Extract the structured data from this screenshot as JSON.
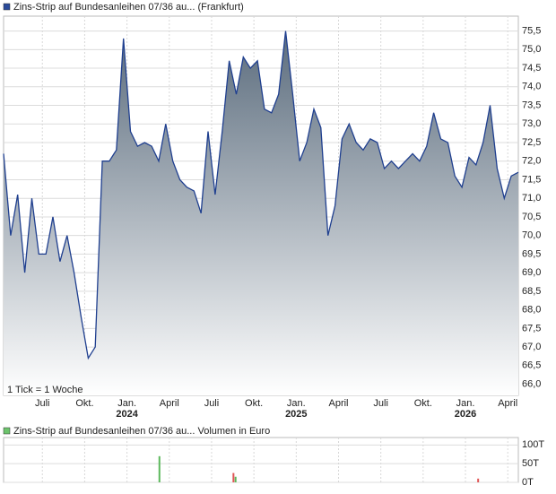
{
  "chart_data": [
    {
      "type": "area",
      "title": "Zins-Strip auf Bundesanleihen 07/36 au... (Frankfurt)",
      "annotation": "1 Tick = 1 Woche",
      "color": "#1f3f8f",
      "fill_top": "#5b6c7d",
      "grid": true,
      "xlim": [
        0,
        73
      ],
      "xticks": [
        {
          "value": 5.5,
          "label": "Juli"
        },
        {
          "value": 11.5,
          "label": "Okt."
        },
        {
          "value": 17.5,
          "label": "Jan.",
          "year": "2024"
        },
        {
          "value": 23.5,
          "label": "April"
        },
        {
          "value": 29.5,
          "label": "Juli"
        },
        {
          "value": 35.5,
          "label": "Okt."
        },
        {
          "value": 41.5,
          "label": "Jan.",
          "year": "2025"
        },
        {
          "value": 47.5,
          "label": "April"
        },
        {
          "value": 53.5,
          "label": "Juli"
        },
        {
          "value": 59.5,
          "label": "Okt."
        },
        {
          "value": 65.5,
          "label": "Jan.",
          "year": "2026"
        },
        {
          "value": 71.5,
          "label": "April"
        }
      ],
      "ylim": [
        65.7,
        75.9
      ],
      "yticks": [
        {
          "value": 66.0,
          "label": "66,0"
        },
        {
          "value": 66.5,
          "label": "66,5"
        },
        {
          "value": 67.0,
          "label": "67,0"
        },
        {
          "value": 67.5,
          "label": "67,5"
        },
        {
          "value": 68.0,
          "label": "68,0"
        },
        {
          "value": 68.5,
          "label": "68,5"
        },
        {
          "value": 69.0,
          "label": "69,0"
        },
        {
          "value": 69.5,
          "label": "69,5"
        },
        {
          "value": 70.0,
          "label": "70,0"
        },
        {
          "value": 70.5,
          "label": "70,5"
        },
        {
          "value": 71.0,
          "label": "71,0"
        },
        {
          "value": 71.5,
          "label": "71,5"
        },
        {
          "value": 72.0,
          "label": "72,0"
        },
        {
          "value": 72.5,
          "label": "72,5"
        },
        {
          "value": 73.0,
          "label": "73,0"
        },
        {
          "value": 73.5,
          "label": "73,5"
        },
        {
          "value": 74.0,
          "label": "74,0"
        },
        {
          "value": 74.5,
          "label": "74,5"
        },
        {
          "value": 75.0,
          "label": "75,0"
        },
        {
          "value": 75.5,
          "label": "75,5"
        }
      ],
      "values": [
        72.2,
        70.0,
        71.1,
        69.0,
        71.0,
        69.5,
        69.5,
        70.5,
        69.3,
        70.0,
        69.0,
        67.8,
        66.7,
        67.0,
        72.0,
        72.0,
        72.3,
        75.3,
        72.8,
        72.4,
        72.5,
        72.4,
        72.0,
        73.0,
        72.0,
        71.5,
        71.3,
        71.2,
        70.6,
        72.8,
        71.1,
        72.8,
        74.7,
        73.8,
        74.8,
        74.5,
        74.7,
        73.4,
        73.3,
        73.8,
        75.5,
        73.8,
        72.0,
        72.5,
        73.4,
        72.9,
        70.0,
        70.8,
        72.6,
        73.0,
        72.5,
        72.3,
        72.6,
        72.5,
        71.8,
        72.0,
        71.8,
        72.0,
        72.2,
        72.0,
        72.4,
        73.3,
        72.6,
        72.5,
        71.6,
        71.3,
        72.1,
        71.9,
        72.5,
        73.5,
        71.8,
        71.0,
        71.6,
        71.7
      ]
    },
    {
      "type": "bar",
      "title": "Zins-Strip auf Bundesanleihen 07/36 au... Volumen in Euro",
      "color": "#5cb85c",
      "grid": true,
      "xlim": [
        0,
        73
      ],
      "ylim": [
        0,
        120000
      ],
      "yticks": [
        {
          "value": 0,
          "label": "0T"
        },
        {
          "value": 50000,
          "label": "50T"
        },
        {
          "value": 100000,
          "label": "100T"
        }
      ],
      "x": [
        22.1,
        32.6,
        32.9,
        67.3
      ],
      "values": [
        70000,
        25000,
        15000,
        10000
      ],
      "colors": [
        "#5cb85c",
        "#e05555",
        "#5cb85c",
        "#e05555"
      ]
    }
  ]
}
